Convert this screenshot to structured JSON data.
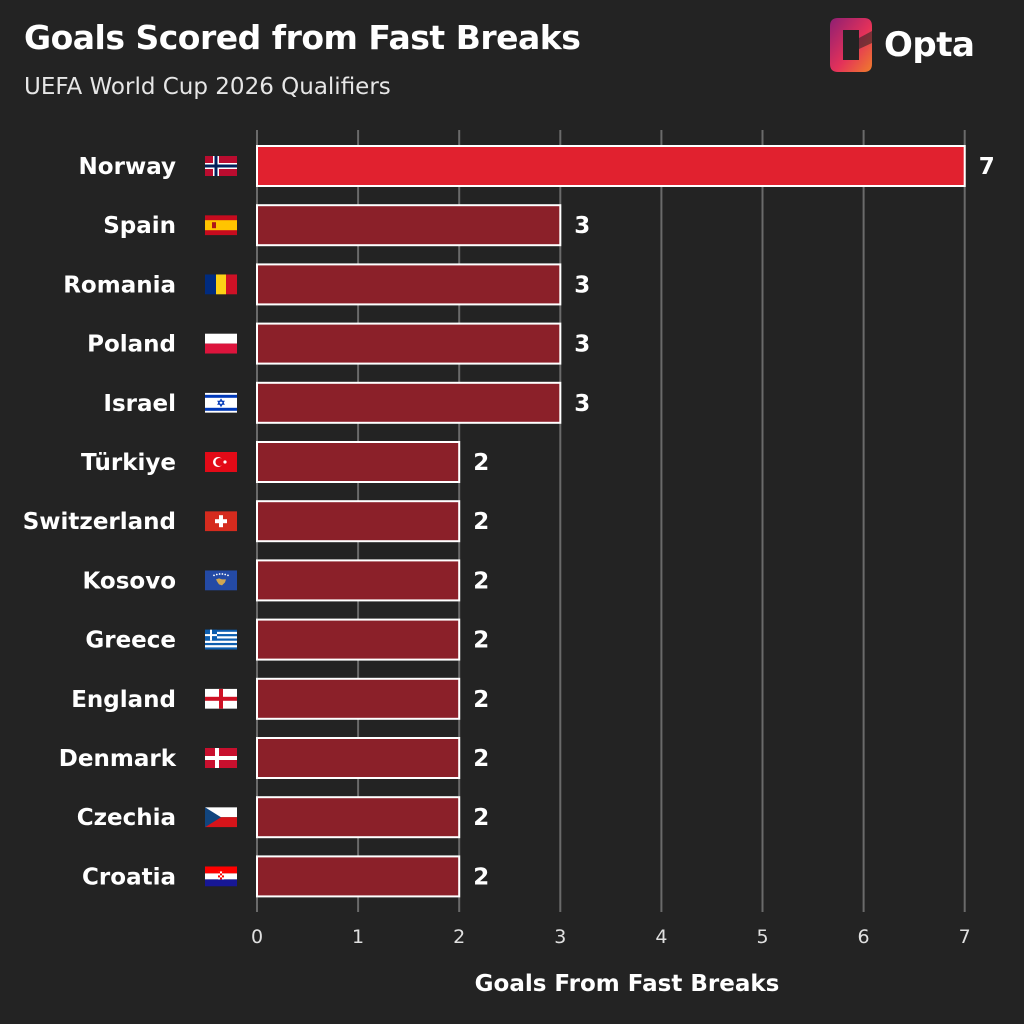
{
  "header": {
    "title": "Goals Scored from Fast Breaks",
    "subtitle": "UEFA World Cup 2026 Qualifiers"
  },
  "brand": {
    "name": "Opta",
    "logo_icon": "opta-logo-icon"
  },
  "colors": {
    "background": "#232323",
    "highlight_bar": "#e1212f",
    "bar": "#8b2029",
    "bar_stroke": "#ffffff",
    "grid": "#6a6a6a",
    "logo_gradient": [
      "#8e1f73",
      "#e3315a",
      "#f07d2b"
    ]
  },
  "chart_data": {
    "type": "bar",
    "orientation": "horizontal",
    "title": "Goals Scored from Fast Breaks",
    "subtitle": "UEFA World Cup 2026 Qualifiers",
    "xlabel": "Goals From Fast Breaks",
    "ylabel": "",
    "xlim": [
      0,
      7
    ],
    "xticks": [
      0,
      1,
      2,
      3,
      4,
      5,
      6,
      7
    ],
    "grid": "vertical",
    "highlight": "Norway",
    "categories": [
      "Norway",
      "Spain",
      "Romania",
      "Poland",
      "Israel",
      "Türkiye",
      "Switzerland",
      "Kosovo",
      "Greece",
      "England",
      "Denmark",
      "Czechia",
      "Croatia"
    ],
    "values": [
      7,
      3,
      3,
      3,
      3,
      2,
      2,
      2,
      2,
      2,
      2,
      2,
      2
    ],
    "flags": [
      "norway-flag-icon",
      "spain-flag-icon",
      "romania-flag-icon",
      "poland-flag-icon",
      "israel-flag-icon",
      "turkiye-flag-icon",
      "switzerland-flag-icon",
      "kosovo-flag-icon",
      "greece-flag-icon",
      "england-flag-icon",
      "denmark-flag-icon",
      "czechia-flag-icon",
      "croatia-flag-icon"
    ]
  }
}
